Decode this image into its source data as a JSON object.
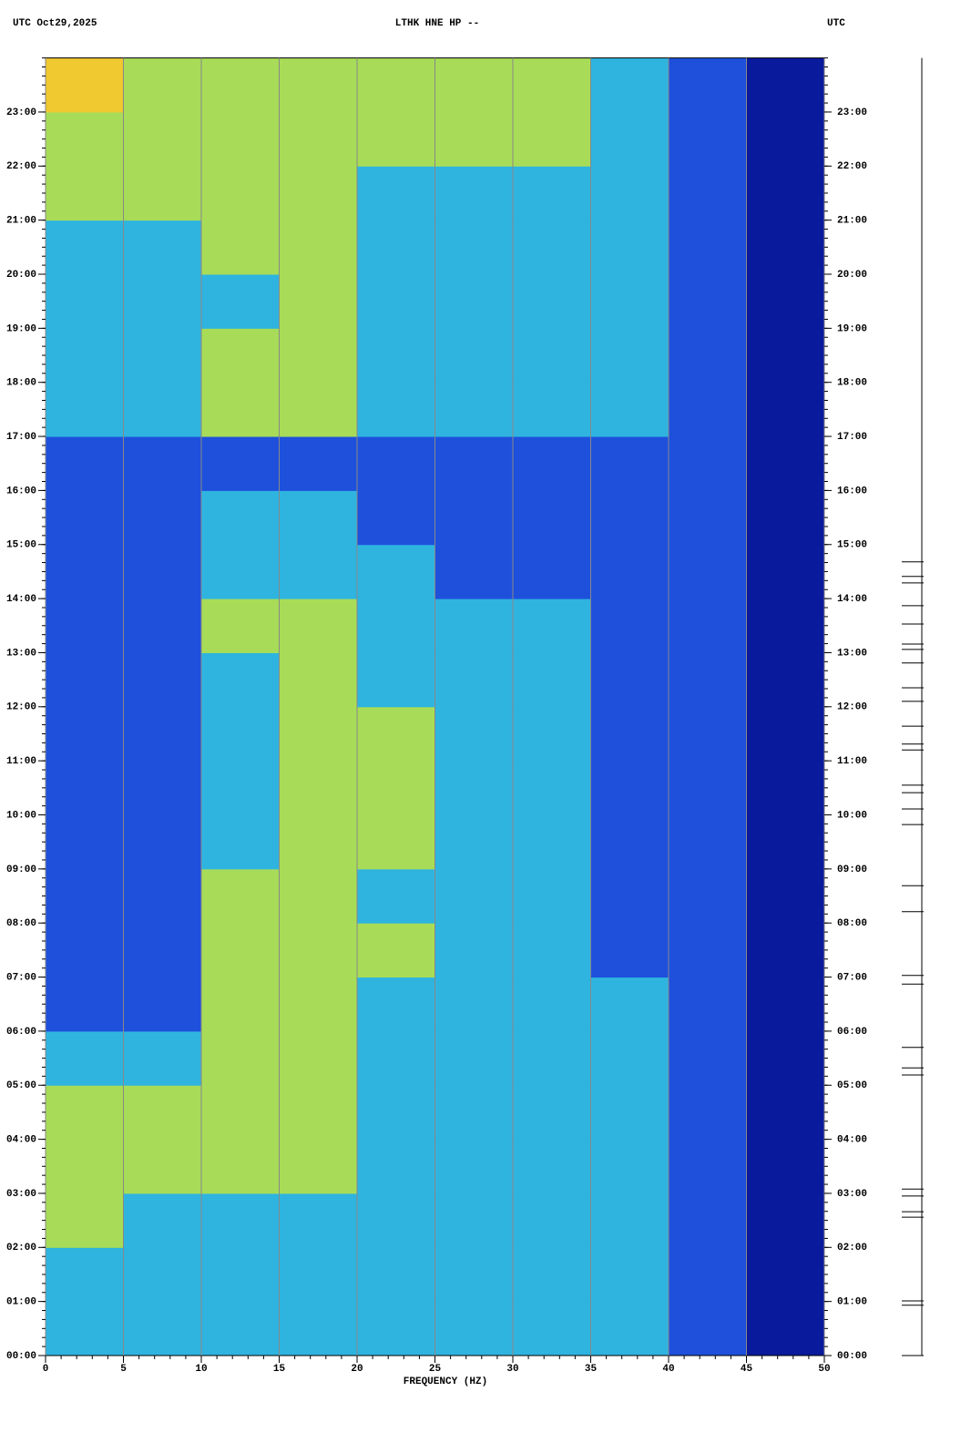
{
  "chart_data": {
    "type": "spectrogram",
    "title_left": "UTC  Oct29,2025",
    "title": "LTHK HNE HP --",
    "title_right": "UTC",
    "xlabel": "FREQUENCY (HZ)",
    "xlim": [
      0,
      50
    ],
    "xticks": [
      0,
      5,
      10,
      15,
      20,
      25,
      30,
      35,
      40,
      45,
      50
    ],
    "xminor_step": 1,
    "ylim": [
      0,
      24
    ],
    "yticks": [
      {
        "value": 0,
        "label": "00:00"
      },
      {
        "value": 1,
        "label": "01:00"
      },
      {
        "value": 2,
        "label": "02:00"
      },
      {
        "value": 3,
        "label": "03:00"
      },
      {
        "value": 4,
        "label": "04:00"
      },
      {
        "value": 5,
        "label": "05:00"
      },
      {
        "value": 6,
        "label": "06:00"
      },
      {
        "value": 7,
        "label": "07:00"
      },
      {
        "value": 8,
        "label": "08:00"
      },
      {
        "value": 9,
        "label": "09:00"
      },
      {
        "value": 10,
        "label": "10:00"
      },
      {
        "value": 11,
        "label": "11:00"
      },
      {
        "value": 12,
        "label": "12:00"
      },
      {
        "value": 13,
        "label": "13:00"
      },
      {
        "value": 14,
        "label": "14:00"
      },
      {
        "value": 15,
        "label": "15:00"
      },
      {
        "value": 16,
        "label": "16:00"
      },
      {
        "value": 17,
        "label": "17:00"
      },
      {
        "value": 18,
        "label": "18:00"
      },
      {
        "value": 19,
        "label": "19:00"
      },
      {
        "value": 20,
        "label": "20:00"
      },
      {
        "value": 21,
        "label": "21:00"
      },
      {
        "value": 22,
        "label": "22:00"
      },
      {
        "value": 23,
        "label": "23:00"
      }
    ],
    "yminor_per_unit": 6,
    "grid": true,
    "colorscale": [
      "#0a1a9c",
      "#1e50dc",
      "#2fb4e0",
      "#a8dc58",
      "#f0c830"
    ],
    "z": [
      [
        2,
        2,
        2,
        2,
        2,
        2,
        2,
        2,
        1,
        0
      ],
      [
        2,
        2,
        2,
        2,
        2,
        2,
        2,
        2,
        1,
        0
      ],
      [
        3,
        2,
        2,
        2,
        2,
        2,
        2,
        2,
        1,
        0
      ],
      [
        3,
        3,
        3,
        3,
        2,
        2,
        2,
        2,
        1,
        0
      ],
      [
        3,
        3,
        3,
        3,
        2,
        2,
        2,
        2,
        1,
        0
      ],
      [
        2,
        2,
        3,
        3,
        2,
        2,
        2,
        2,
        1,
        0
      ],
      [
        1,
        1,
        3,
        3,
        2,
        2,
        2,
        2,
        1,
        0
      ],
      [
        1,
        1,
        3,
        3,
        3,
        2,
        2,
        1,
        1,
        0
      ],
      [
        1,
        1,
        3,
        3,
        2,
        2,
        2,
        1,
        1,
        0
      ],
      [
        1,
        1,
        2,
        3,
        3,
        2,
        2,
        1,
        1,
        0
      ],
      [
        1,
        1,
        2,
        3,
        3,
        2,
        2,
        1,
        1,
        0
      ],
      [
        1,
        1,
        2,
        3,
        3,
        2,
        2,
        1,
        1,
        0
      ],
      [
        1,
        1,
        2,
        3,
        2,
        2,
        2,
        1,
        1,
        0
      ],
      [
        1,
        1,
        3,
        3,
        2,
        2,
        2,
        1,
        1,
        0
      ],
      [
        1,
        1,
        2,
        2,
        2,
        1,
        1,
        1,
        1,
        0
      ],
      [
        1,
        1,
        2,
        2,
        1,
        1,
        1,
        1,
        1,
        0
      ],
      [
        1,
        1,
        1,
        1,
        1,
        1,
        1,
        1,
        1,
        0
      ],
      [
        2,
        2,
        3,
        3,
        2,
        2,
        2,
        2,
        1,
        0
      ],
      [
        2,
        2,
        3,
        3,
        2,
        2,
        2,
        2,
        1,
        0
      ],
      [
        2,
        2,
        2,
        3,
        2,
        2,
        2,
        2,
        1,
        0
      ],
      [
        2,
        2,
        3,
        3,
        2,
        2,
        2,
        2,
        1,
        0
      ],
      [
        3,
        3,
        3,
        3,
        2,
        2,
        2,
        2,
        1,
        0
      ],
      [
        3,
        3,
        3,
        3,
        3,
        3,
        3,
        2,
        1,
        0
      ],
      [
        4,
        3,
        3,
        3,
        3,
        3,
        3,
        2,
        1,
        0
      ]
    ],
    "event_markers": [
      14.68,
      14.41,
      14.29,
      13.87,
      13.53,
      13.16,
      13.06,
      12.81,
      12.35,
      12.1,
      11.64,
      11.31,
      11.2,
      10.55,
      10.41,
      10.11,
      9.82,
      8.69,
      8.21,
      7.03,
      6.87,
      5.7,
      5.32,
      5.19,
      3.08,
      2.95,
      2.66,
      2.56,
      1.01,
      0.93
    ]
  }
}
